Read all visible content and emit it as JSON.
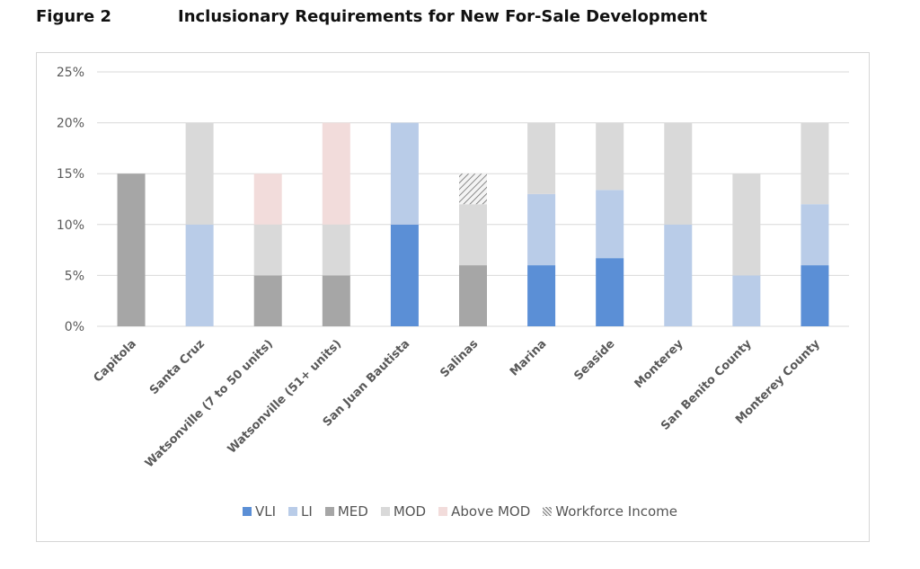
{
  "figure": {
    "label": "Figure 2",
    "title": "Inclusionary Requirements for New For-Sale Development"
  },
  "chart_data": {
    "type": "bar",
    "stacked": true,
    "categories": [
      "Capitola",
      "Santa Cruz",
      "Watsonville (7 to 50 units)",
      "Watsonville (51+ units)",
      "San Juan Bautista",
      "Salinas",
      "Marina",
      "Seaside",
      "Monterey",
      "San Benito County",
      "Monterey County"
    ],
    "series": [
      {
        "name": "VLI",
        "color": "#5b8fd6",
        "values": [
          0,
          0,
          0,
          0,
          10,
          0,
          6,
          6.7,
          0,
          0,
          6
        ]
      },
      {
        "name": "LI",
        "color": "#b9cce8",
        "values": [
          0,
          10,
          0,
          0,
          10,
          0,
          7,
          6.7,
          10,
          5,
          6
        ]
      },
      {
        "name": "MED",
        "color": "#a6a6a6",
        "values": [
          15,
          0,
          5,
          5,
          0,
          6,
          0,
          0,
          0,
          0,
          0
        ]
      },
      {
        "name": "MOD",
        "color": "#d9d9d9",
        "values": [
          0,
          10,
          5,
          5,
          0,
          6,
          7,
          6.6,
          10,
          10,
          8
        ]
      },
      {
        "name": "Above MOD",
        "color": "#f2dcdb",
        "values": [
          0,
          0,
          5,
          10,
          0,
          0,
          0,
          0,
          0,
          0,
          0
        ]
      },
      {
        "name": "Workforce Income",
        "color": "hatch",
        "values": [
          0,
          0,
          0,
          0,
          0,
          3,
          0,
          0,
          0,
          0,
          0
        ]
      }
    ],
    "yticks": [
      "0%",
      "5%",
      "10%",
      "15%",
      "20%",
      "25%"
    ],
    "ylim": [
      0,
      25
    ],
    "grid": true,
    "legend_position": "bottom"
  }
}
